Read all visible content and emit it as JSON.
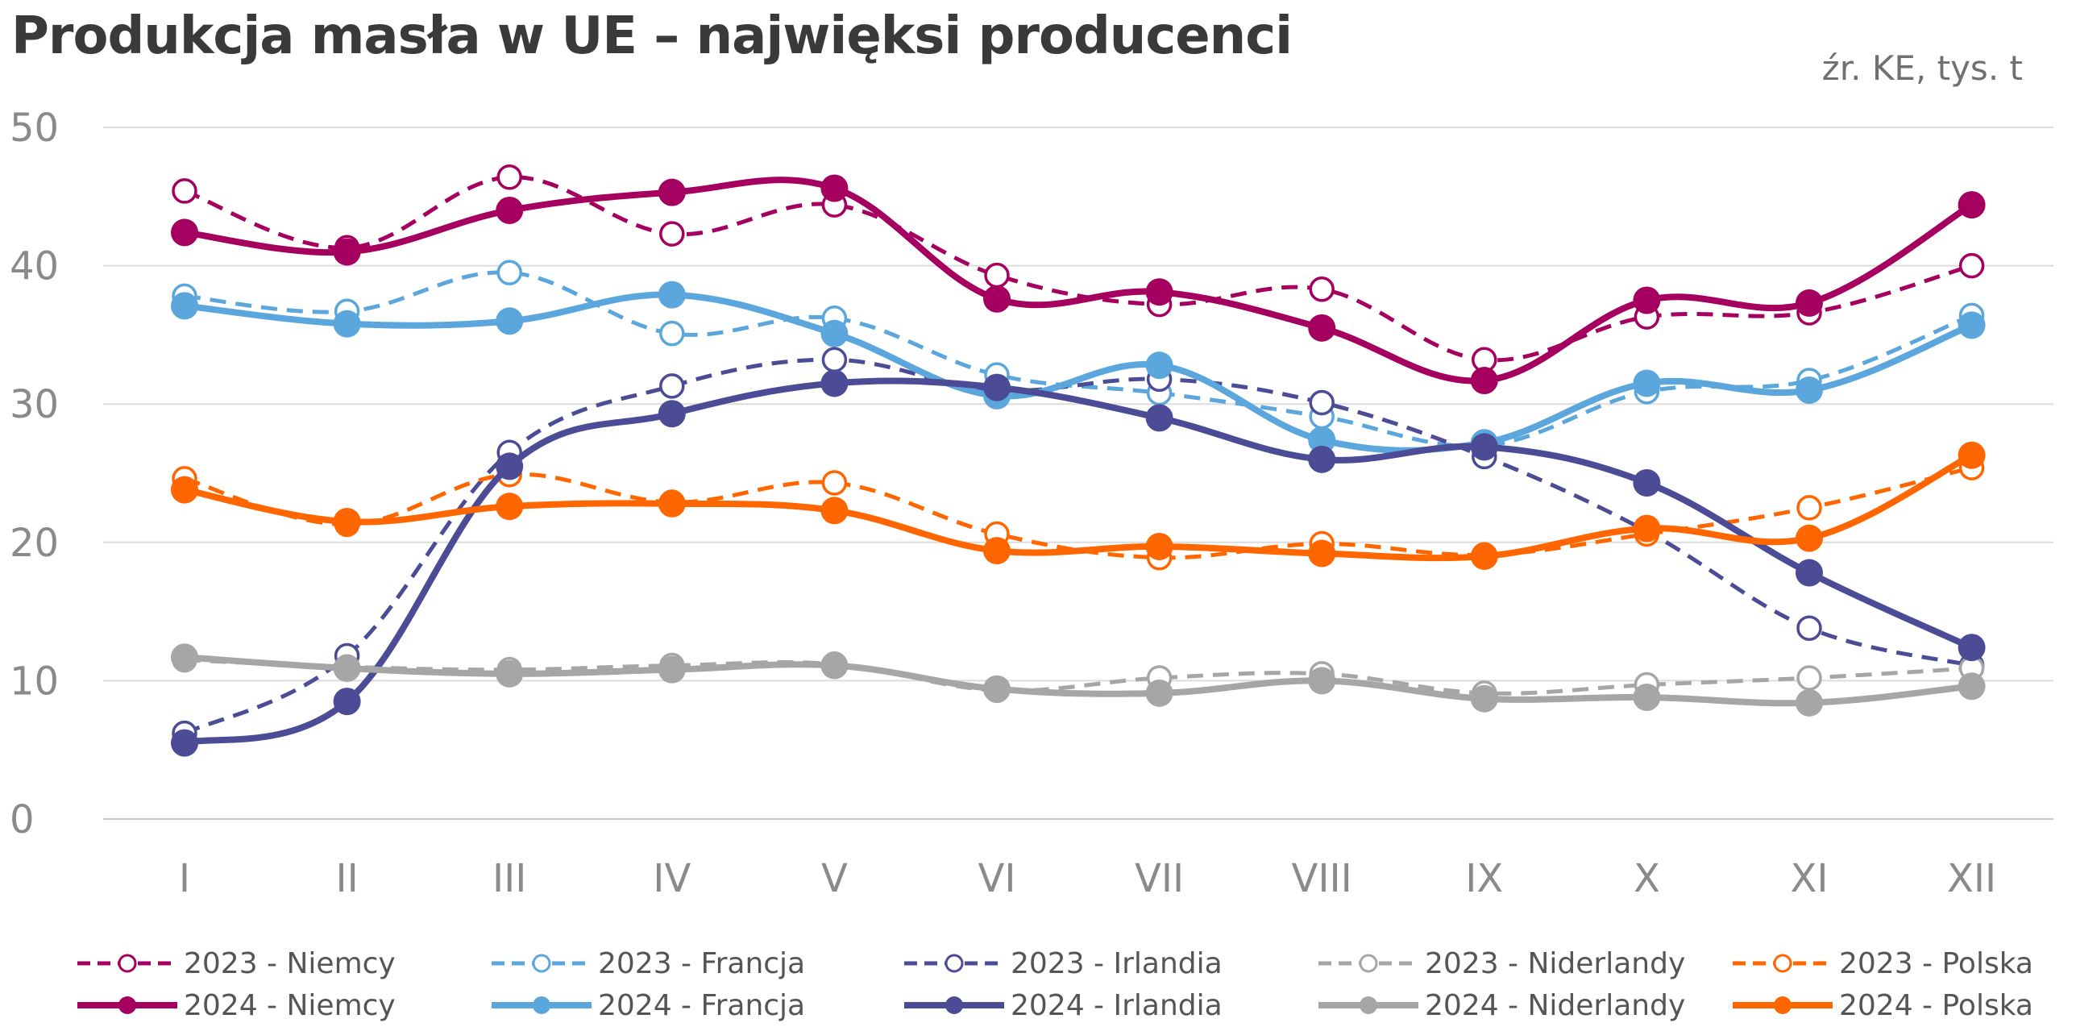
{
  "title": "Produkcja masła w UE – najwięksi producenci",
  "source": "źr. KE, tys. t",
  "chart_data": {
    "type": "line",
    "title": "Produkcja masła w UE – najwięksi producenci",
    "xlabel": "",
    "ylabel": "",
    "ylim": [
      0,
      50
    ],
    "yticks": [
      "0",
      "10",
      "20",
      "30",
      "40",
      "50"
    ],
    "categories": [
      "I",
      "II",
      "III",
      "IV",
      "V",
      "VI",
      "VII",
      "VIII",
      "IX",
      "X",
      "XI",
      "XII"
    ],
    "grid": true,
    "legend_position": "bottom",
    "series": [
      {
        "name": "2023 - Niemcy",
        "color": "#a5005f",
        "style": "dashed",
        "marker": "open",
        "values": [
          45.4,
          41.3,
          46.4,
          42.3,
          44.4,
          39.3,
          37.2,
          38.3,
          33.2,
          36.3,
          36.6,
          40.0
        ]
      },
      {
        "name": "2023 - Francja",
        "color": "#5ba6dc",
        "style": "dashed",
        "marker": "open",
        "values": [
          37.8,
          36.7,
          39.5,
          35.1,
          36.2,
          32.1,
          30.8,
          29.1,
          27.0,
          30.9,
          31.7,
          36.4
        ]
      },
      {
        "name": "2023 - Irlandia",
        "color": "#4c4b96",
        "style": "dashed",
        "marker": "open",
        "values": [
          6.2,
          11.8,
          26.5,
          31.3,
          33.2,
          31.0,
          31.8,
          30.1,
          26.2,
          20.8,
          13.8,
          11.1
        ]
      },
      {
        "name": "2023 - Niderlandy",
        "color": "#a6a6a6",
        "style": "dashed",
        "marker": "open",
        "values": [
          11.5,
          11.0,
          10.8,
          11.1,
          11.2,
          9.3,
          10.2,
          10.5,
          9.1,
          9.7,
          10.2,
          10.9
        ]
      },
      {
        "name": "2023 - Polska",
        "color": "#ff6600",
        "style": "dashed",
        "marker": "open",
        "values": [
          24.6,
          21.3,
          24.9,
          22.9,
          24.3,
          20.6,
          18.9,
          19.9,
          19.1,
          20.6,
          22.5,
          25.4
        ]
      },
      {
        "name": "2024 - Niemcy",
        "color": "#a5005f",
        "style": "solid",
        "marker": "filled",
        "values": [
          42.4,
          41.0,
          44.0,
          45.3,
          45.6,
          37.6,
          38.1,
          35.5,
          31.7,
          37.5,
          37.3,
          44.4
        ]
      },
      {
        "name": "2024 - Francja",
        "color": "#5ba6dc",
        "style": "solid",
        "marker": "filled",
        "values": [
          37.1,
          35.8,
          36.0,
          37.9,
          35.1,
          30.6,
          32.8,
          27.4,
          27.2,
          31.5,
          31.0,
          35.7
        ]
      },
      {
        "name": "2024 - Irlandia",
        "color": "#4c4b96",
        "style": "solid",
        "marker": "filled",
        "values": [
          5.5,
          8.5,
          25.5,
          29.3,
          31.5,
          31.2,
          29.0,
          26.0,
          26.9,
          24.3,
          17.8,
          12.4
        ]
      },
      {
        "name": "2024 - Niderlandy",
        "color": "#a6a6a6",
        "style": "solid",
        "marker": "filled",
        "values": [
          11.7,
          10.9,
          10.5,
          10.8,
          11.1,
          9.4,
          9.1,
          10.0,
          8.7,
          8.8,
          8.4,
          9.6
        ]
      },
      {
        "name": "2024 - Polska",
        "color": "#ff6600",
        "style": "solid",
        "marker": "filled",
        "values": [
          23.8,
          21.5,
          22.6,
          22.8,
          22.3,
          19.4,
          19.7,
          19.2,
          19.0,
          21.0,
          20.3,
          26.3
        ]
      }
    ]
  }
}
